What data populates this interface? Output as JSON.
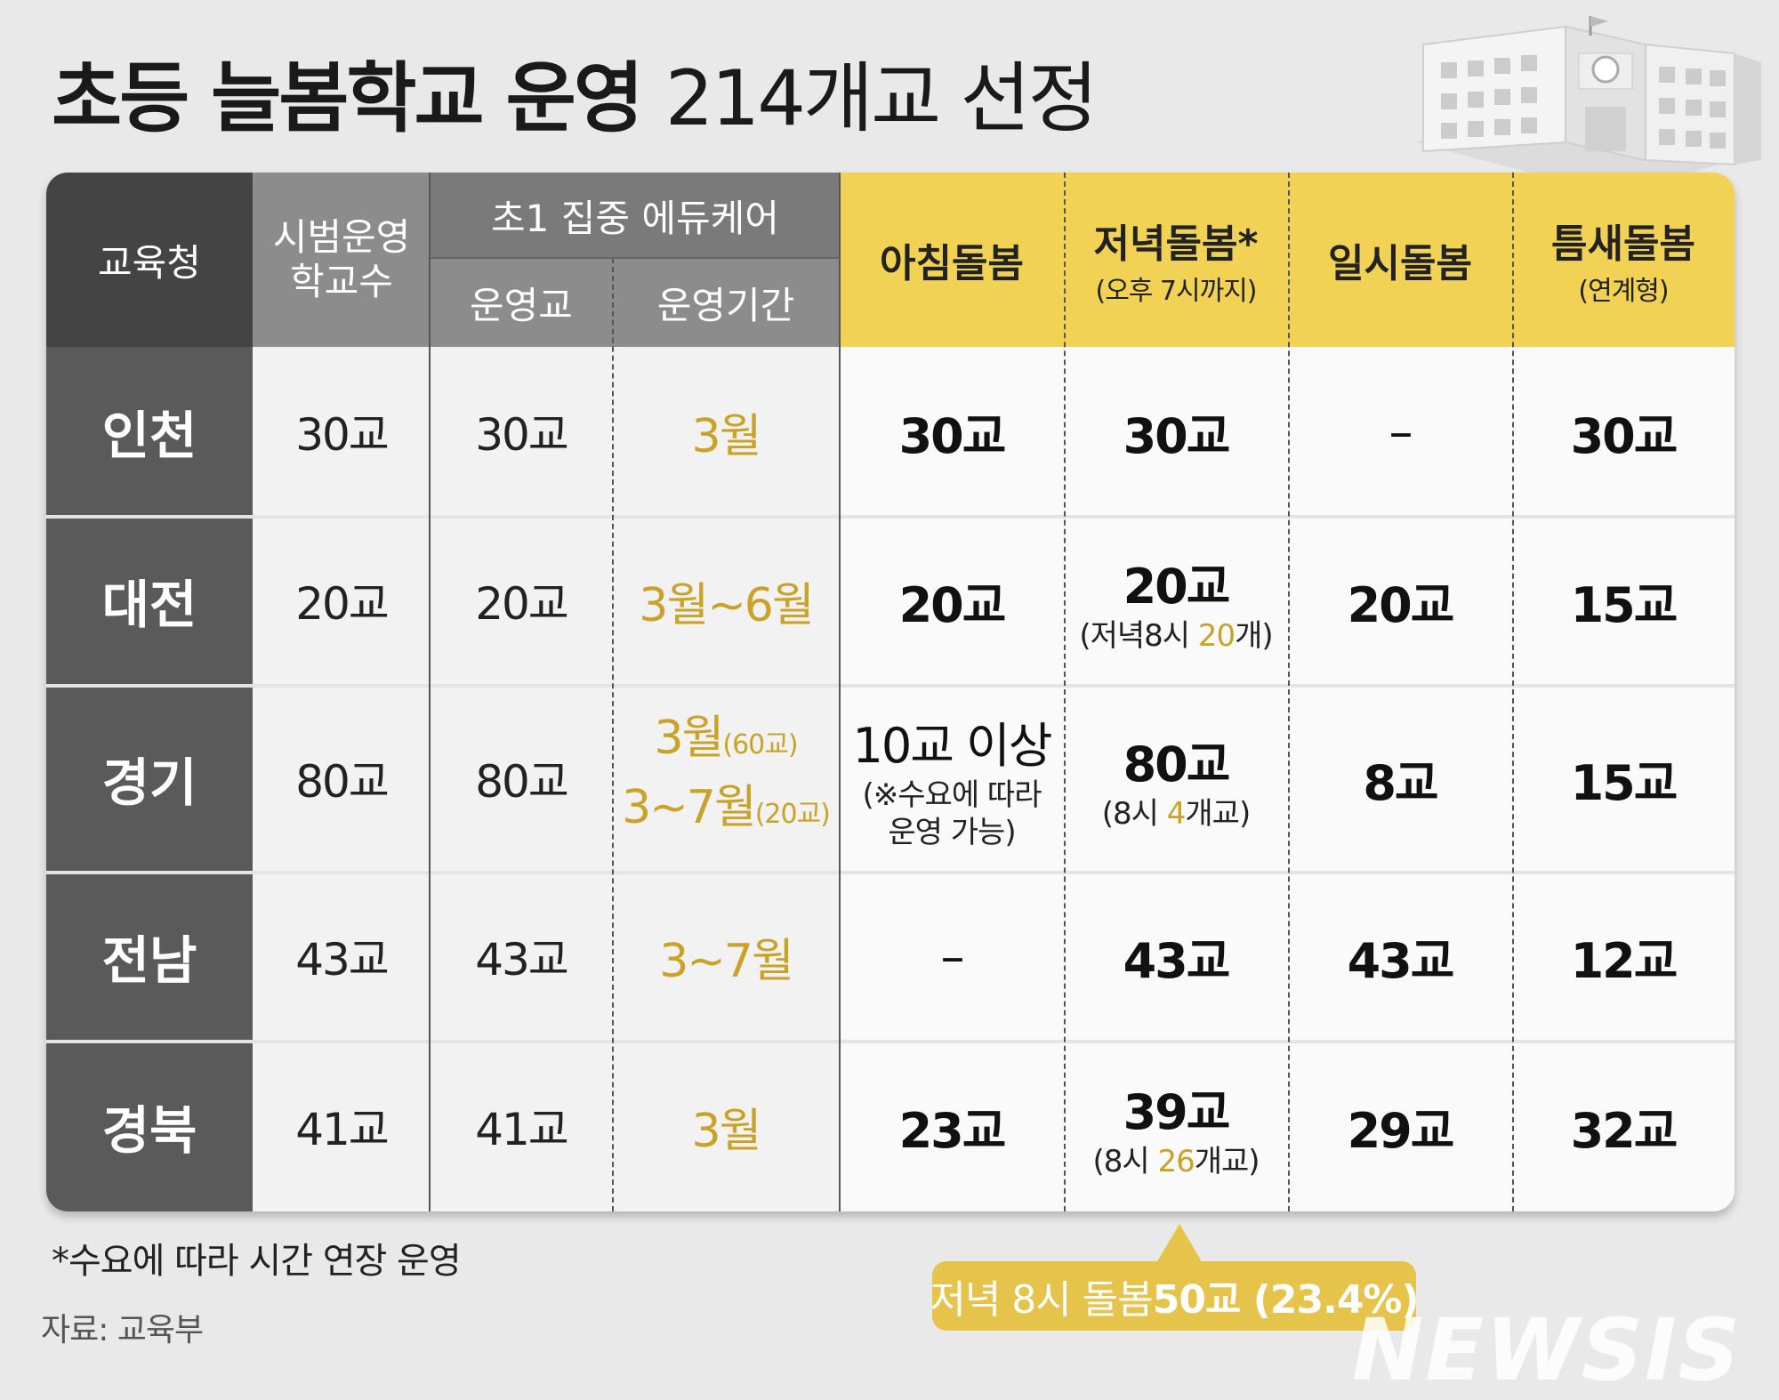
{
  "title": {
    "bold": "초등 늘봄학교 운영",
    "light": "214개교 선정"
  },
  "headers": {
    "office": "교육청",
    "pilot_l1": "시범운영",
    "pilot_l2": "학교수",
    "educare": "초1 집중 에듀케어",
    "educare_schools": "운영교",
    "educare_period": "운영기간",
    "morning": "아침돌봄",
    "evening": "저녁돌봄*",
    "evening_sub": "(오후 7시까지)",
    "temporary": "일시돌봄",
    "gap": "틈새돌봄",
    "gap_sub": "(연계형)"
  },
  "rows": [
    {
      "office": "인천",
      "pilot": "30교",
      "educare": "30교",
      "period": "3월",
      "morning": "30교",
      "evening": "30교",
      "temporary": "–",
      "gap": "30교"
    },
    {
      "office": "대전",
      "pilot": "20교",
      "educare": "20교",
      "period": "3월~6월",
      "morning": "20교",
      "evening": "20교",
      "evening_note_a": "(저녁8시 ",
      "evening_note_g": "20",
      "evening_note_b": "개)",
      "temporary": "20교",
      "gap": "15교"
    },
    {
      "office": "경기",
      "pilot": "80교",
      "educare": "80교",
      "period_l1": "3월",
      "period_l1_s": "(60교)",
      "period_l2": "3~7월",
      "period_l2_s": "(20교)",
      "morning": "10교 이상",
      "morning_note_l1": "(※수요에 따라",
      "morning_note_l2": "운영 가능)",
      "evening": "80교",
      "evening_note_a": "(8시 ",
      "evening_note_g": "4",
      "evening_note_b": "개교)",
      "temporary": "8교",
      "gap": "15교"
    },
    {
      "office": "전남",
      "pilot": "43교",
      "educare": "43교",
      "period": "3~7월",
      "morning": "–",
      "evening": "43교",
      "temporary": "43교",
      "gap": "12교"
    },
    {
      "office": "경북",
      "pilot": "41교",
      "educare": "41교",
      "period": "3월",
      "morning": "23교",
      "evening": "39교",
      "evening_note_a": "(8시 ",
      "evening_note_g": "26",
      "evening_note_b": "개교)",
      "temporary": "29교",
      "gap": "32교"
    }
  ],
  "footnote": "*수요에 따라 시간 연장 운영",
  "source": "자료: 교육부",
  "callout": {
    "a": "저녁 8시 돌봄 ",
    "b": "50교 (23.4%)"
  },
  "watermark": "NEWSIS",
  "colors": {
    "gold": "#c9a227",
    "yellow": "#f2d255",
    "dark": "#444444"
  }
}
